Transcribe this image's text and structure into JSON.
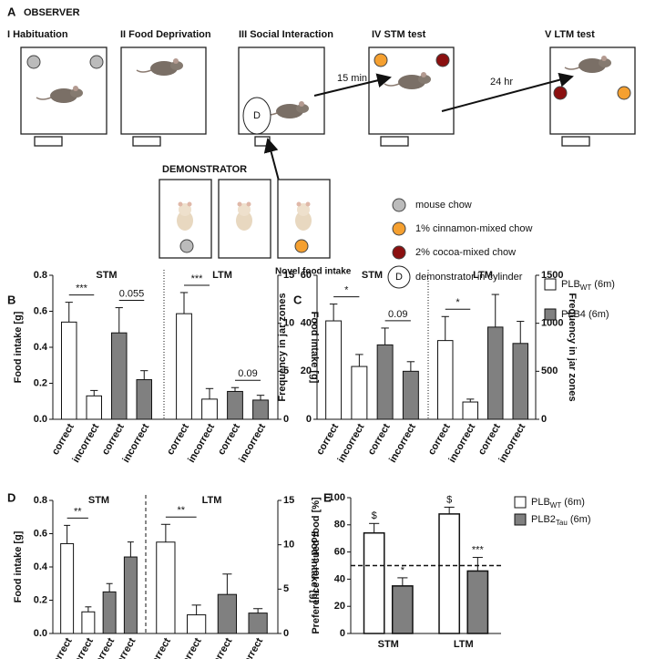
{
  "diagram": {
    "panel": "A",
    "title": "OBSERVER",
    "stages": [
      "I  Habituation",
      "II  Food Deprivation",
      "III  Social Interaction",
      "IV  STM test",
      "V  LTM test"
    ],
    "arrows": [
      "15 min",
      "24 hr"
    ],
    "demonstrator": "DEMONSTRATOR",
    "demonstrator_caption": "Novel food intake",
    "cylinder_mark": "D",
    "legend": [
      "mouse chow",
      "1% cinnamon-mixed chow",
      "2% cocoa-mixed chow",
      "demonstrator in cylinder"
    ]
  },
  "chart_data": [
    {
      "type": "bar",
      "panel": "B",
      "ylabel": "Food intake [g]",
      "y2label": "Food intake [g]",
      "ylim": [
        0,
        0.8
      ],
      "yticks": [
        {
          "value": 0,
          "label": "0.0"
        },
        0.2,
        0.4,
        0.6,
        0.8
      ],
      "y2lim": [
        0,
        15
      ],
      "y2ticks": [
        0,
        5,
        10,
        15
      ],
      "divider": "dotted",
      "groups": [
        {
          "title": "STM",
          "axis": "y",
          "categories": [
            "correct",
            "incorrect",
            "correct",
            "incorrect"
          ],
          "colors": [
            "#ffffff",
            "#ffffff",
            "#808080",
            "#808080"
          ],
          "values": [
            0.54,
            0.13,
            0.48,
            0.22
          ],
          "errors": [
            0.11,
            0.03,
            0.14,
            0.05
          ],
          "annotations": [
            "***",
            "0.055"
          ]
        },
        {
          "title": "LTM",
          "axis": "y2",
          "categories": [
            "correct",
            "incorrect",
            "correct",
            "incorrect"
          ],
          "colors": [
            "#ffffff",
            "#ffffff",
            "#808080",
            "#808080"
          ],
          "values": [
            11.0,
            2.1,
            2.9,
            2.0
          ],
          "errors": [
            2.2,
            1.1,
            0.4,
            0.5
          ],
          "annotations": [
            "***",
            "0.09"
          ]
        }
      ]
    },
    {
      "type": "bar",
      "panel": "C",
      "ylabel": "Frequency in jar zones",
      "y2label": "Frequency in jar zones",
      "ylim": [
        0,
        60
      ],
      "yticks": [
        0,
        20,
        40,
        60
      ],
      "y2lim": [
        0,
        1500
      ],
      "y2ticks": [
        0,
        500,
        1000,
        1500
      ],
      "divider": "dotted",
      "groups": [
        {
          "title": "STM",
          "axis": "y",
          "categories": [
            "correct",
            "incorrect",
            "correct",
            "incorrect"
          ],
          "colors": [
            "#ffffff",
            "#ffffff",
            "#808080",
            "#808080"
          ],
          "values": [
            41,
            22,
            31,
            20
          ],
          "errors": [
            7,
            5,
            7,
            4
          ],
          "annotations": [
            "*",
            "0.09"
          ]
        },
        {
          "title": "LTM",
          "axis": "y2",
          "categories": [
            "correct",
            "incorrect",
            "correct",
            "incorrect"
          ],
          "colors": [
            "#ffffff",
            "#ffffff",
            "#808080",
            "#808080"
          ],
          "values": [
            820,
            180,
            960,
            790
          ],
          "errors": [
            250,
            30,
            340,
            230
          ],
          "annotations": [
            "*"
          ]
        }
      ],
      "legend": [
        {
          "name": "PLB",
          "sub": "WT",
          "suffix": " (6m)",
          "color": "#ffffff"
        },
        {
          "name": "PLB4 (6m)",
          "color": "#808080"
        }
      ]
    },
    {
      "type": "bar",
      "panel": "D",
      "ylabel": "Food intake [g]",
      "y2label": "Food intake [g]",
      "ylim": [
        0,
        0.8
      ],
      "yticks": [
        {
          "value": 0,
          "label": "0.0"
        },
        0.2,
        0.4,
        0.6,
        0.8
      ],
      "y2lim": [
        0,
        15
      ],
      "y2ticks": [
        0,
        5,
        10,
        15
      ],
      "divider": "dashed",
      "groups": [
        {
          "title": "STM",
          "axis": "y",
          "categories": [
            "correct",
            "incorrect",
            "correct",
            "incorrect"
          ],
          "colors": [
            "#ffffff",
            "#ffffff",
            "#808080",
            "#808080"
          ],
          "values": [
            0.54,
            0.13,
            0.25,
            0.46
          ],
          "errors": [
            0.11,
            0.03,
            0.05,
            0.09
          ],
          "annotations": [
            "**"
          ]
        },
        {
          "title": "LTM",
          "axis": "y2",
          "categories": [
            "correct",
            "incorrect",
            "correct",
            "incorrect"
          ],
          "colors": [
            "#ffffff",
            "#ffffff",
            "#808080",
            "#808080"
          ],
          "values": [
            10.3,
            2.1,
            4.4,
            2.3
          ],
          "errors": [
            2.0,
            1.1,
            2.3,
            0.5
          ],
          "annotations": [
            "**"
          ]
        }
      ]
    },
    {
      "type": "bar",
      "panel": "E",
      "ylabel": "Preference for cued food [%]",
      "ylim": [
        0,
        100
      ],
      "yticks": [
        0,
        20,
        40,
        60,
        80,
        100
      ],
      "refline": 50,
      "categories": [
        "STM",
        "LTM"
      ],
      "series": [
        {
          "name": "PLB",
          "sub": "WT",
          "suffix": " (6m)",
          "color": "#ffffff",
          "values": [
            74,
            88
          ],
          "errors": [
            7,
            5
          ],
          "annotations": [
            "$",
            "$"
          ]
        },
        {
          "name": "PLB2",
          "sub": "Tau",
          "suffix": " (6m)",
          "color": "#808080",
          "values": [
            35,
            46
          ],
          "errors": [
            6,
            10
          ],
          "annotations": [
            "*",
            "***"
          ]
        }
      ]
    }
  ]
}
